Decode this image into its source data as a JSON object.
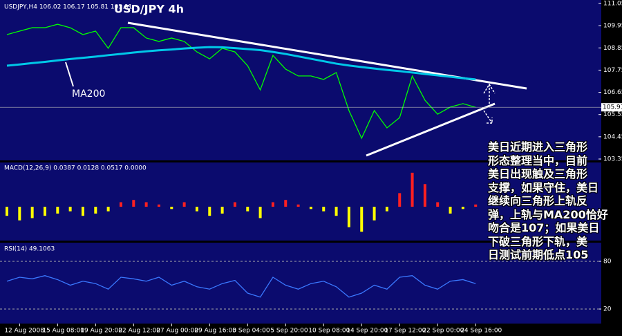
{
  "header": {
    "symbol_info": "USDJPY,H4  106.02 106.17 105.81 105.91",
    "title": "USD/JPY  4h",
    "ma_label": "MA200"
  },
  "annotation": {
    "lines": [
      "美日近期进入三角形",
      "形态整理当中，目前",
      "美日出现触及三角形",
      "支撑，如果守住，美日",
      "继续向三角形上轨反",
      "弹，上轨与MA200恰好",
      "吻合是107；如果美日",
      "下破三角形下轨，美",
      "日测试前期低点105"
    ]
  },
  "chart_data": [
    {
      "type": "line",
      "categories": [
        null,
        "12 Aug 2008",
        null,
        null,
        "15 Aug 08:00",
        null,
        null,
        "19 Aug 20:00",
        null,
        null,
        "22 Aug 12:00",
        null,
        null,
        "27 Aug 00:00",
        null,
        null,
        "29 Aug 16:00",
        null,
        null,
        "3 Sep 04:00",
        null,
        null,
        "5 Sep 20:00",
        null,
        null,
        "10 Sep 08:00",
        null,
        null,
        "14 Sep 20:00",
        null,
        null,
        "17 Sep 12:00",
        null,
        null,
        "22 Sep 00:00",
        null,
        null,
        "24 Sep 16:00"
      ],
      "series": [
        {
          "color": "#00ff00",
          "values": [
            109.51,
            109.68,
            109.85,
            109.85,
            110.02,
            109.85,
            109.51,
            109.68,
            108.83,
            109.85,
            109.85,
            109.34,
            109.17,
            109.34,
            109.17,
            108.65,
            108.31,
            108.83,
            108.65,
            107.97,
            106.77,
            108.48,
            107.8,
            107.46,
            107.46,
            107.29,
            107.63,
            105.75,
            104.38,
            105.75,
            104.89,
            105.4,
            107.46,
            106.26,
            105.57,
            105.92,
            106.09,
            105.91
          ]
        },
        {
          "color": "#00c8e8",
          "values": [
            107.97,
            108.03,
            108.1,
            108.16,
            108.23,
            108.3,
            108.36,
            108.42,
            108.49,
            108.55,
            108.62,
            108.68,
            108.73,
            108.77,
            108.82,
            108.86,
            108.89,
            108.88,
            108.84,
            108.79,
            108.74,
            108.65,
            108.55,
            108.43,
            108.31,
            108.19,
            108.07,
            107.98,
            107.9,
            107.83,
            107.76,
            107.7,
            107.63,
            107.56,
            107.49,
            107.42,
            107.35,
            107.29
          ]
        }
      ],
      "current_price": 105.91,
      "ylim": [
        103.35,
        111.05
      ],
      "yticks": [
        111.05,
        109.95,
        108.85,
        107.75,
        106.65,
        105.55,
        104.45,
        103.35
      ]
    },
    {
      "type": "bar",
      "title": "MACD(12,26,9) 0.0387 0.0128 0.0517 0.0000",
      "values": [
        -0.2,
        -0.3,
        -0.25,
        -0.2,
        -0.15,
        -0.1,
        -0.2,
        -0.15,
        -0.1,
        0.1,
        0.15,
        0.1,
        0.05,
        -0.05,
        0.1,
        -0.1,
        -0.2,
        -0.15,
        0.1,
        -0.1,
        -0.25,
        0.1,
        0.15,
        0.05,
        -0.05,
        -0.1,
        -0.2,
        -0.45,
        -0.55,
        -0.3,
        -0.1,
        0.3,
        0.75,
        0.5,
        0.1,
        -0.15,
        -0.05,
        0.05
      ],
      "positive_color": "#ff2020",
      "negative_color": "#ffff00",
      "ylim": [
        -0.7,
        0.9
      ]
    },
    {
      "type": "line",
      "title": "RSI(14) 49.1063",
      "color": "#3a78ff",
      "values": [
        55,
        60,
        58,
        62,
        57,
        50,
        55,
        52,
        45,
        60,
        58,
        55,
        60,
        50,
        55,
        48,
        45,
        52,
        56,
        40,
        35,
        60,
        50,
        45,
        52,
        55,
        48,
        35,
        40,
        50,
        45,
        60,
        62,
        50,
        45,
        55,
        57,
        52
      ],
      "ylim": [
        0,
        100
      ],
      "yticks": [
        80,
        20
      ]
    }
  ]
}
